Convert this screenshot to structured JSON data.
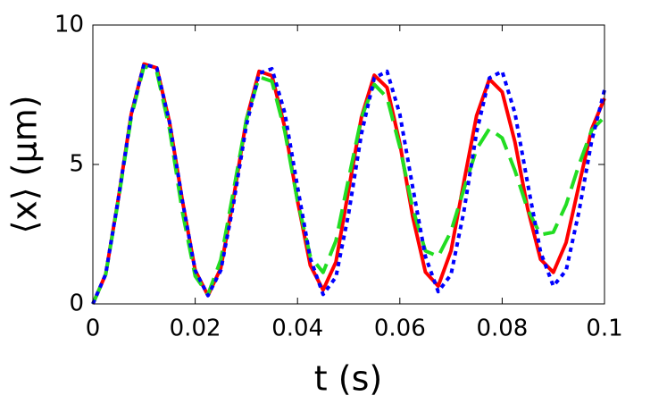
{
  "chart_data": {
    "type": "line",
    "x_label": "t (s)",
    "y_label": "⟨x⟩ (μm)",
    "x": [
      0,
      0.0025,
      0.005,
      0.0075,
      0.01,
      0.0125,
      0.015,
      0.0175,
      0.02,
      0.0225,
      0.025,
      0.0275,
      0.03,
      0.0325,
      0.035,
      0.0375,
      0.04,
      0.0425,
      0.045,
      0.0475,
      0.05,
      0.0525,
      0.055,
      0.0575,
      0.06,
      0.0625,
      0.065,
      0.0675,
      0.07,
      0.0725,
      0.075,
      0.0775,
      0.08,
      0.0825,
      0.085,
      0.0875,
      0.09,
      0.0925,
      0.095,
      0.0975,
      0.1
    ],
    "series": [
      {
        "color": "#ff0000",
        "dash": "solid",
        "values": [
          0,
          1.06,
          3.8,
          6.8,
          8.6,
          8.46,
          6.5,
          3.7,
          1.2,
          0.3,
          1.28,
          3.8,
          6.6,
          8.34,
          8.18,
          6.34,
          3.7,
          1.38,
          0.5,
          1.5,
          4.1,
          6.7,
          8.2,
          7.76,
          5.76,
          3.14,
          1.14,
          0.64,
          1.9,
          4.35,
          6.75,
          8.06,
          7.6,
          5.8,
          3.4,
          1.6,
          1.13,
          2.2,
          4.25,
          6.27,
          7.37
        ]
      },
      {
        "color": "#22dd22",
        "dash": "dashed",
        "values": [
          0,
          1.05,
          3.74,
          6.7,
          8.53,
          8.32,
          6.26,
          3.3,
          1.0,
          0.34,
          1.58,
          4.06,
          6.6,
          8.14,
          7.98,
          6.2,
          3.7,
          1.7,
          1.13,
          2.26,
          4.5,
          6.68,
          7.87,
          7.4,
          5.63,
          3.43,
          1.9,
          1.7,
          2.6,
          4.1,
          5.55,
          6.28,
          5.95,
          4.78,
          3.38,
          2.48,
          2.57,
          3.56,
          4.98,
          6.23,
          6.7
        ]
      },
      {
        "color": "#0000ff",
        "dash": "dotted",
        "values": [
          0,
          1.06,
          3.8,
          6.8,
          8.6,
          8.46,
          6.5,
          3.7,
          1.2,
          0.3,
          1.2,
          3.6,
          6.4,
          8.27,
          8.43,
          6.86,
          4.2,
          1.63,
          0.34,
          0.96,
          3.25,
          6.1,
          8.1,
          8.34,
          6.8,
          4.2,
          1.7,
          0.44,
          1.05,
          3.3,
          6.15,
          8.1,
          8.34,
          6.84,
          4.3,
          1.86,
          0.64,
          1.2,
          3.3,
          5.85,
          7.67
        ]
      }
    ],
    "xlim": [
      0,
      0.1
    ],
    "xticks": [
      0,
      0.02,
      0.04,
      0.06,
      0.08,
      0.1
    ],
    "ylim": [
      0,
      10
    ],
    "yticks": [
      0,
      5,
      10
    ]
  }
}
